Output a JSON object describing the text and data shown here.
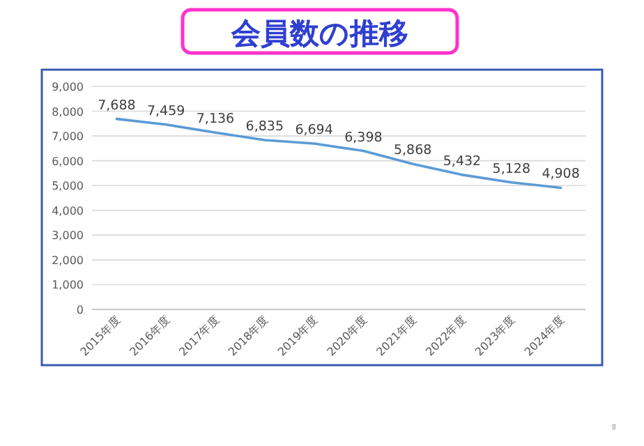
{
  "chart_data": {
    "type": "line",
    "title": "会員数の推移",
    "categories": [
      "2015年度",
      "2016年度",
      "2017年度",
      "2018年度",
      "2019年度",
      "2020年度",
      "2021年度",
      "2022年度",
      "2023年度",
      "2024年度"
    ],
    "values": [
      7688,
      7459,
      7136,
      6835,
      6694,
      6398,
      5868,
      5432,
      5128,
      4908
    ],
    "value_labels": [
      "7,688",
      "7,459",
      "7,136",
      "6,835",
      "6,694",
      "6,398",
      "5,868",
      "5,432",
      "5,128",
      "4,908"
    ],
    "color": "#5b9bd5",
    "ylim": [
      0,
      9000
    ],
    "yticks": [
      0,
      {
        "value": 1000,
        "label": "1,000"
      },
      {
        "value": 2000,
        "label": "2,000"
      },
      {
        "value": 3000,
        "label": "3,000"
      },
      {
        "value": 4000,
        "label": "4,000"
      },
      {
        "value": 5000,
        "label": "5,000"
      },
      {
        "value": 6000,
        "label": "6,000"
      },
      {
        "value": 7000,
        "label": "7,000"
      },
      {
        "value": 8000,
        "label": "8,000"
      },
      {
        "value": 9000,
        "label": "9,000"
      }
    ],
    "grid": "y",
    "marker": "none",
    "line_style": "solid",
    "annotations": [
      "8"
    ]
  }
}
